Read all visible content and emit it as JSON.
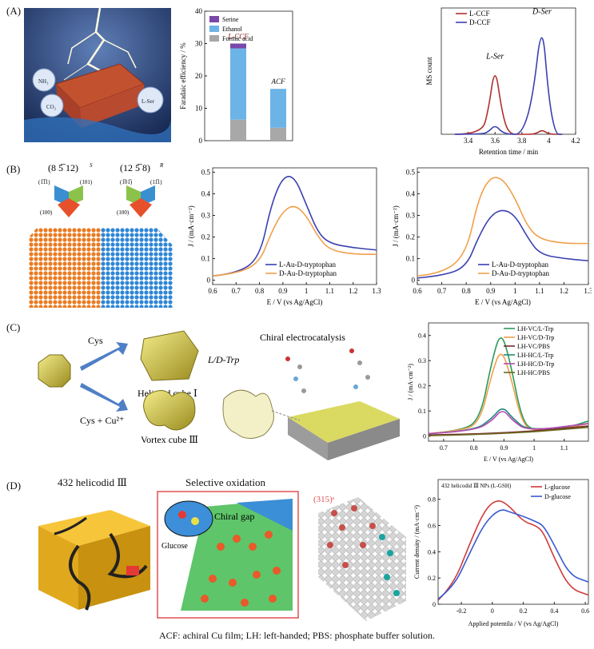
{
  "panels": {
    "A": "(A)",
    "B": "(B)",
    "C": "(C)",
    "D": "(D)"
  },
  "panelA": {
    "illustration": {
      "nh3": "NH₃",
      "co2": "CO₂",
      "lser": "L-Ser"
    },
    "bar_chart": {
      "ylabel": "Faradaic efficiency / %",
      "legend": [
        "Serine",
        "Ethanol",
        "Formic acid"
      ],
      "bar_labels": [
        "L-CCF",
        "ACF"
      ]
    },
    "ms_chart": {
      "ylabel": "MS count",
      "xlabel": "Retention time / min",
      "legend": [
        "L-CCF",
        "D-CCF"
      ],
      "peak_labels": [
        "L-Ser",
        "D-Ser"
      ]
    }
  },
  "panelB": {
    "facet_labels": {
      "left_title": "(8 5̅ 12)",
      "left_sup": "S",
      "right_title": "(12 5̅ 8)",
      "right_sup": "R",
      "l1": "(1̅1̅1)",
      "l2": "(101)",
      "l3": "(100)",
      "r1": "(1̅01̅)",
      "r2": "(11̅1)",
      "r3": "(100)"
    },
    "cv1": {
      "ylabel": "J / (mA·cm⁻²)",
      "xlabel": "E / V (vs Ag/AgCl)",
      "legend": [
        "L-Au-D-tryptophan",
        "D-Au-D-tryptophan"
      ]
    },
    "cv2": {
      "ylabel": "J / (mA·cm⁻²)",
      "xlabel": "E / V (vs Ag/AgCl)",
      "legend": [
        "L-Au-D-tryptophan",
        "D-Au-D-tryptophan"
      ]
    }
  },
  "panelC": {
    "cys": "Cys",
    "cys_cu": "Cys + Cu²⁺",
    "helicoid": "Helicoid cube Ⅰ",
    "vortex": "Vortex cube Ⅲ",
    "title": "Chiral electrocatalysis",
    "trp": "L/D-Trp",
    "plot": {
      "ylabel": "J / (mA·cm⁻²)",
      "xlabel": "E / V (vs Ag/AgCl)",
      "legend": [
        "LH-VC/L-Trp",
        "LH-VC/D-Trp",
        "LH-VC/PBS",
        "LH-HC/L-Trp",
        "LH-HC/D-Trp",
        "LH-HC/PBS"
      ]
    }
  },
  "panelD": {
    "title1": "432 helicodid Ⅲ",
    "title2": "Selective oxidation",
    "chiral_gap": "Chiral gap",
    "glucose": "Glucose",
    "facet": "(315)ˢ",
    "plot": {
      "title": "432 helicodid Ⅲ NPs (L-GSH)",
      "ylabel": "Current density / (mA·cm⁻²)",
      "xlabel": "Applied potentila / V (vs Ag/AgCl)",
      "legend": [
        "L-glucose",
        "D-glucose"
      ]
    }
  },
  "caption": "ACF: achiral Cu film; LH: left-handed; PBS: phosphate buffer solution.",
  "chart_data": [
    {
      "type": "bar",
      "categories": [
        "L-CCF",
        "ACF"
      ],
      "ylim": [
        0,
        40
      ],
      "yticks": [
        0,
        10,
        20,
        30,
        40
      ],
      "series": [
        {
          "name": "Formic acid",
          "values": [
            6.5,
            4
          ]
        },
        {
          "name": "Ethanol",
          "values": [
            22,
            12
          ]
        },
        {
          "name": "Serine",
          "values": [
            1.5,
            0
          ]
        }
      ]
    },
    {
      "type": "line",
      "xlim": [
        3.2,
        4.2
      ],
      "xticks": [
        3.4,
        3.6,
        3.8,
        4.0,
        4.2
      ],
      "series": [
        {
          "name": "L-CCF",
          "x": [
            3.3,
            3.5,
            3.55,
            3.6,
            3.65,
            3.7,
            3.8,
            3.9,
            3.95,
            4.0,
            4.1
          ],
          "y": [
            0,
            0,
            0.2,
            0.6,
            0.2,
            0,
            0,
            0,
            0.04,
            0,
            0
          ]
        },
        {
          "name": "D-CCF",
          "x": [
            3.3,
            3.5,
            3.55,
            3.6,
            3.65,
            3.7,
            3.8,
            3.88,
            3.95,
            4.0,
            4.05,
            4.1
          ],
          "y": [
            0,
            0,
            0.02,
            0.08,
            0.02,
            0,
            0,
            0.3,
            1.0,
            0.3,
            0,
            0
          ]
        }
      ]
    },
    {
      "type": "line",
      "xlim": [
        0.6,
        1.3
      ],
      "ylim": [
        -0.02,
        0.52
      ],
      "xticks": [
        0.6,
        0.7,
        0.8,
        0.9,
        1.0,
        1.1,
        1.2,
        1.3
      ],
      "yticks": [
        0,
        0.1,
        0.2,
        0.3,
        0.4,
        0.5
      ],
      "series": [
        {
          "name": "L-Au-D-tryptophan",
          "x": [
            0.6,
            0.7,
            0.8,
            0.85,
            0.9,
            0.95,
            1.0,
            1.05,
            1.1,
            1.2,
            1.3
          ],
          "y": [
            0.02,
            0.03,
            0.1,
            0.35,
            0.48,
            0.48,
            0.35,
            0.22,
            0.17,
            0.15,
            0.14
          ]
        },
        {
          "name": "D-Au-D-tryptophan",
          "x": [
            0.6,
            0.7,
            0.8,
            0.85,
            0.9,
            0.95,
            1.0,
            1.05,
            1.1,
            1.2,
            1.3
          ],
          "y": [
            0.02,
            0.03,
            0.08,
            0.22,
            0.32,
            0.35,
            0.3,
            0.2,
            0.14,
            0.12,
            0.12
          ]
        }
      ]
    },
    {
      "type": "line",
      "xlim": [
        0.6,
        1.3
      ],
      "ylim": [
        -0.02,
        0.52
      ],
      "xticks": [
        0.6,
        0.7,
        0.8,
        0.9,
        1.0,
        1.1,
        1.2,
        1.3
      ],
      "yticks": [
        0,
        0.1,
        0.2,
        0.3,
        0.4,
        0.5
      ],
      "series": [
        {
          "name": "L-Au-D-tryptophan",
          "x": [
            0.6,
            0.7,
            0.8,
            0.85,
            0.9,
            0.95,
            1.0,
            1.05,
            1.1,
            1.2,
            1.3
          ],
          "y": [
            0.01,
            0.02,
            0.06,
            0.2,
            0.3,
            0.33,
            0.3,
            0.2,
            0.12,
            0.1,
            0.09
          ]
        },
        {
          "name": "D-Au-D-tryptophan",
          "x": [
            0.6,
            0.7,
            0.8,
            0.85,
            0.9,
            0.95,
            1.0,
            1.05,
            1.1,
            1.2,
            1.3
          ],
          "y": [
            0.02,
            0.03,
            0.12,
            0.38,
            0.48,
            0.47,
            0.38,
            0.25,
            0.19,
            0.17,
            0.17
          ]
        }
      ]
    },
    {
      "type": "line",
      "xlim": [
        0.65,
        1.18
      ],
      "ylim": [
        -0.02,
        0.45
      ],
      "xticks": [
        0.7,
        0.8,
        0.9,
        1.0,
        1.1
      ],
      "yticks": [
        0,
        0.1,
        0.2,
        0.3,
        0.4
      ],
      "series": [
        {
          "name": "LH-VC/L-Trp",
          "x": [
            0.65,
            0.75,
            0.82,
            0.86,
            0.89,
            0.92,
            0.96,
            1.0,
            1.1,
            1.18
          ],
          "y": [
            0.01,
            0.02,
            0.06,
            0.3,
            0.42,
            0.3,
            0.06,
            0.02,
            0.03,
            0.06
          ]
        },
        {
          "name": "LH-VC/D-Trp",
          "x": [
            0.65,
            0.75,
            0.82,
            0.86,
            0.89,
            0.92,
            0.96,
            1.0,
            1.1,
            1.18
          ],
          "y": [
            0.01,
            0.02,
            0.05,
            0.25,
            0.35,
            0.25,
            0.05,
            0.02,
            0.03,
            0.05
          ]
        },
        {
          "name": "LH-VC/PBS",
          "x": [
            0.65,
            0.9,
            1.18
          ],
          "y": [
            0.005,
            0.01,
            0.04
          ]
        },
        {
          "name": "LH-HC/L-Trp",
          "x": [
            0.65,
            0.8,
            0.86,
            0.895,
            0.93,
            0.98,
            1.18
          ],
          "y": [
            0.01,
            0.02,
            0.07,
            0.12,
            0.07,
            0.02,
            0.05
          ]
        },
        {
          "name": "LH-HC/D-Trp",
          "x": [
            0.65,
            0.8,
            0.86,
            0.895,
            0.93,
            0.98,
            1.18
          ],
          "y": [
            0.01,
            0.02,
            0.06,
            0.11,
            0.06,
            0.02,
            0.05
          ]
        },
        {
          "name": "LH-HC/PBS",
          "x": [
            0.65,
            0.9,
            1.18
          ],
          "y": [
            0.002,
            0.008,
            0.035
          ]
        }
      ]
    },
    {
      "type": "line",
      "xlim": [
        -0.35,
        0.62
      ],
      "ylim": [
        0,
        0.95
      ],
      "xticks": [
        -0.2,
        0,
        0.2,
        0.4,
        0.6
      ],
      "yticks": [
        0,
        0.2,
        0.4,
        0.6,
        0.8
      ],
      "series": [
        {
          "name": "L-glucose",
          "x": [
            -0.35,
            -0.25,
            -0.15,
            -0.05,
            0.03,
            0.1,
            0.2,
            0.28,
            0.33,
            0.4,
            0.5,
            0.62
          ],
          "y": [
            0.03,
            0.15,
            0.45,
            0.72,
            0.8,
            0.76,
            0.63,
            0.6,
            0.55,
            0.35,
            0.12,
            0.07
          ]
        },
        {
          "name": "D-glucose",
          "x": [
            -0.35,
            -0.25,
            -0.15,
            -0.05,
            0.05,
            0.12,
            0.2,
            0.28,
            0.33,
            0.4,
            0.5,
            0.62
          ],
          "y": [
            0.04,
            0.13,
            0.38,
            0.62,
            0.73,
            0.7,
            0.67,
            0.63,
            0.6,
            0.45,
            0.22,
            0.17
          ]
        }
      ]
    }
  ]
}
